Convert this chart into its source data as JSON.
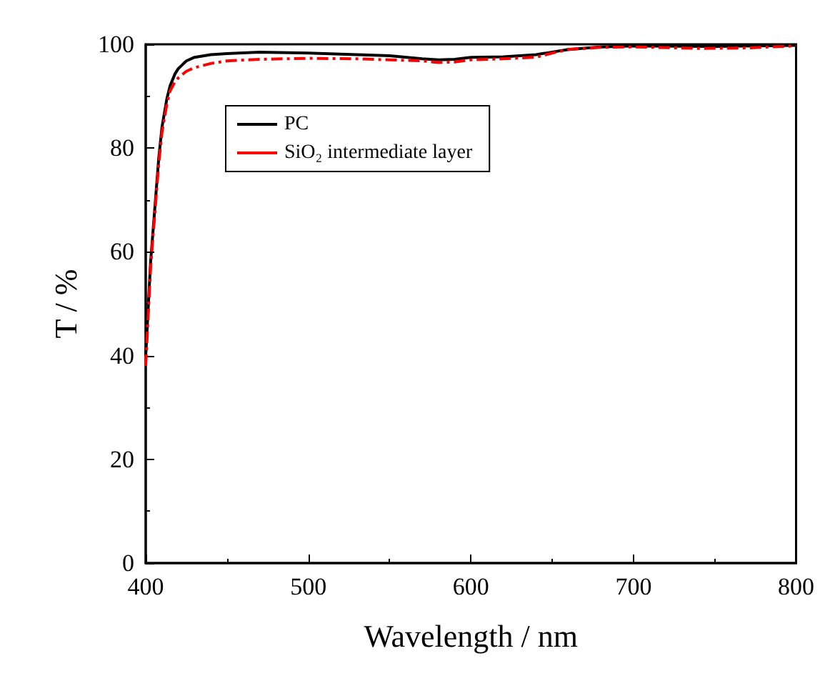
{
  "chart_data": {
    "type": "line",
    "xlabel": "Wavelength / nm",
    "ylabel": "T / %",
    "xlim": [
      400,
      800
    ],
    "xticks": [
      400,
      500,
      600,
      700,
      800
    ],
    "ylim": [
      0,
      100
    ],
    "yticks": [
      0,
      20,
      40,
      60,
      80,
      100
    ],
    "grid": false,
    "legend": "top left",
    "marker": "none",
    "series": [
      {
        "name": "PC",
        "color": "#000000",
        "line_style": "solid",
        "x": [
          400,
          403,
          405,
          408,
          410,
          413,
          415,
          418,
          420,
          425,
          430,
          440,
          450,
          470,
          500,
          530,
          550,
          570,
          580,
          590,
          600,
          620,
          640,
          650,
          660,
          680,
          700,
          750,
          800
        ],
        "values": [
          40,
          58,
          66,
          78,
          84,
          89.5,
          92,
          94.3,
          95.3,
          96.8,
          97.5,
          98,
          98.2,
          98.5,
          98.3,
          98,
          97.8,
          97.2,
          97,
          97.1,
          97.5,
          97.6,
          98,
          98.5,
          99,
          99.5,
          99.7,
          99.6,
          99.8
        ]
      },
      {
        "name": "SiO₂ intermediate layer",
        "color": "#ff0000",
        "line_style": "dashed",
        "x": [
          400,
          403,
          405,
          408,
          410,
          413,
          415,
          418,
          420,
          425,
          430,
          440,
          450,
          470,
          500,
          530,
          550,
          570,
          580,
          590,
          600,
          620,
          640,
          650,
          660,
          680,
          700,
          740,
          770,
          800
        ],
        "values": [
          38,
          57,
          65,
          77,
          83,
          88.5,
          91,
          92.8,
          93.5,
          94.8,
          95.5,
          96.3,
          96.8,
          97.1,
          97.3,
          97.2,
          97,
          96.8,
          96.5,
          96.6,
          97,
          97.2,
          97.5,
          98.3,
          99,
          99.4,
          99.5,
          99.2,
          99.3,
          99.7
        ]
      }
    ]
  }
}
